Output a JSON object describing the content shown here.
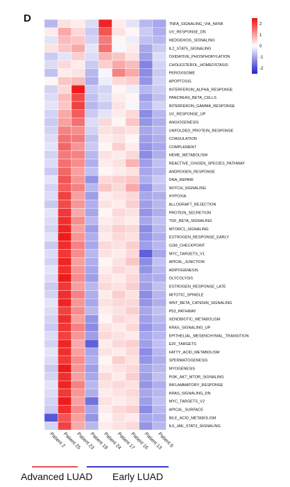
{
  "panel_letter": "D",
  "colors": {
    "low": "#2222cc",
    "mid": "#ffffff",
    "high": "#ee1111",
    "advanced": "#e05050",
    "early": "#3a3ad0"
  },
  "groups": [
    {
      "label": "Advanced LUAD",
      "color": "#e05050"
    },
    {
      "label": "Early LUAD",
      "color": "#3a3ad0"
    }
  ],
  "chart_data": {
    "type": "heatmap",
    "title": "",
    "xlabel": "",
    "ylabel": "",
    "columns": [
      "Patient 2",
      "Patient 25",
      "Patient 23",
      "Patient 19",
      "Patient 24",
      "Patient 17",
      "Patient 16",
      "Patient 13",
      "Patient 6"
    ],
    "rows": [
      "TNFA_SIGNALING_VIA_NFKB",
      "UV_RESPONSE_DN",
      "HEDGEHOG_SIGNALING",
      "IL2_STAT5_SIGNALING",
      "OXIDATIVE_PHOSPHORYLATION",
      "CHOLESTEROL_HOMEOSTASIS",
      "PEROXISOME",
      "APOPTOSIS",
      "INTERFERON_ALPHA_RESPONSE",
      "PANCREAS_BETA_CELLS",
      "INTERFERON_GAMMA_RESPONSE",
      "UV_RESPONSE_UP",
      "ANGIOGENESIS",
      "UNFOLDED_PROTEIN_RESPONSE",
      "COAGULATION",
      "COMPLEMENT",
      "HEME_METABOLISM",
      "REACTIVE_OXIGEN_SPECIES_PATHWAY",
      "ANDROGEN_RESPONSE",
      "DNA_REPAIR",
      "NOTCH_SIGNALING",
      "HYPOXIA",
      "ALLOGRAFT_REJECTION",
      "PROTEIN_SECRETION",
      "TGF_BETA_SIGNALING",
      "MTORC1_SIGNALING",
      "ESTROGEN_RESPONSE_EARLY",
      "G2M_CHECKPOINT",
      "MYC_TARGETS_V1",
      "APICAL_JUNCTION",
      "ADIPOGENESIS",
      "GLYCOLYSIS",
      "ESTROGEN_RESPONSE_LATE",
      "MITOTIC_SPINDLE",
      "WNT_BETA_CATENIN_SIGNALING",
      "P53_PATHWAY",
      "XENOBIOTIC_METABOLISM",
      "KRAS_SIGNALING_UP",
      "EPITHELIAL_MESENCHYMAL_TRANSITION",
      "E2F_TARGETS",
      "FATTY_ACID_METABOLISM",
      "SPERMATOGENESIS",
      "MYOGENESIS",
      "PI3K_AKT_MTOR_SIGNALING",
      "INFLAMMATORY_RESPONSE",
      "KRAS_SIGNALING_DN",
      "MYC_TARGETS_V2",
      "APICAL_SURFACE",
      "BILE_ACID_METABOLISM",
      "IL6_JAK_STAT3_SIGNALING"
    ],
    "values": [
      [
        -0.8,
        0.3,
        0.2,
        -0.4,
        2.3,
        0.2,
        -0.3,
        -0.8,
        -1.0
      ],
      [
        0.2,
        0.9,
        0.4,
        -0.6,
        1.8,
        0.3,
        0.1,
        -0.6,
        -0.9
      ],
      [
        -0.3,
        0.7,
        0.6,
        -0.5,
        1.4,
        0.1,
        -0.2,
        -0.7,
        -0.8
      ],
      [
        0.3,
        0.6,
        0.9,
        -0.3,
        1.5,
        -0.1,
        0.2,
        -1.0,
        -0.6
      ],
      [
        -0.6,
        -0.3,
        0.5,
        -0.4,
        0.8,
        0.6,
        0.3,
        -1.1,
        -0.4
      ],
      [
        -0.4,
        0.4,
        0.2,
        -0.6,
        0.5,
        0.9,
        0.7,
        -1.4,
        -0.5
      ],
      [
        -0.7,
        0.2,
        0.3,
        -0.8,
        -0.1,
        1.3,
        0.9,
        -1.3,
        -0.6
      ],
      [
        0.1,
        0.6,
        0.7,
        -0.9,
        -0.2,
        0.4,
        0.5,
        -1.2,
        -0.5
      ],
      [
        -0.5,
        0.4,
        2.4,
        -0.6,
        -0.5,
        0.1,
        -0.2,
        -0.8,
        -0.6
      ],
      [
        -0.4,
        0.7,
        1.9,
        -0.7,
        -0.4,
        0.2,
        0.1,
        -1.1,
        -0.7
      ],
      [
        -0.3,
        0.6,
        2.0,
        -0.8,
        -0.6,
        0.3,
        -0.1,
        -0.9,
        -0.5
      ],
      [
        -0.5,
        0.9,
        1.7,
        -0.6,
        -0.3,
        0.2,
        0.4,
        -1.3,
        -0.8
      ],
      [
        -0.6,
        1.0,
        1.5,
        -0.4,
        0.4,
        0.1,
        0.6,
        -1.2,
        -0.9
      ],
      [
        -0.5,
        1.3,
        1.2,
        -0.5,
        0.3,
        0.4,
        0.3,
        -1.0,
        -0.8
      ],
      [
        -0.4,
        1.5,
        1.4,
        -0.7,
        0.2,
        0.3,
        0.1,
        -1.1,
        -0.9
      ],
      [
        -0.3,
        1.6,
        1.1,
        -0.6,
        0.1,
        0.5,
        0.2,
        -1.2,
        -1.0
      ],
      [
        -0.5,
        1.4,
        1.3,
        -0.8,
        0.3,
        0.2,
        0.4,
        -1.3,
        -0.9
      ],
      [
        -0.4,
        1.5,
        1.2,
        -0.9,
        0.2,
        0.3,
        0.8,
        -1.1,
        -0.7
      ],
      [
        -0.6,
        1.6,
        1.0,
        -0.7,
        0.1,
        0.2,
        0.3,
        -1.0,
        -0.8
      ],
      [
        -0.3,
        1.8,
        1.1,
        -1.2,
        0.4,
        0.5,
        0.6,
        -0.9,
        -0.6
      ],
      [
        -0.5,
        1.7,
        1.3,
        -0.8,
        0.6,
        0.4,
        0.9,
        -1.2,
        -0.7
      ],
      [
        -0.4,
        2.0,
        1.0,
        -1.1,
        0.2,
        0.3,
        0.4,
        -1.0,
        -0.9
      ],
      [
        -0.6,
        1.9,
        1.1,
        -0.9,
        0.3,
        0.2,
        0.5,
        -1.1,
        -0.8
      ],
      [
        -0.3,
        2.1,
        0.9,
        -1.0,
        0.1,
        0.4,
        0.3,
        -1.2,
        -0.9
      ],
      [
        -0.4,
        2.2,
        1.2,
        -0.8,
        0.2,
        0.3,
        0.2,
        -1.0,
        -0.7
      ],
      [
        -0.5,
        2.3,
        1.0,
        -1.1,
        0.3,
        0.5,
        0.4,
        -1.3,
        -0.8
      ],
      [
        -0.3,
        2.4,
        1.1,
        -0.9,
        0.2,
        0.4,
        0.3,
        -1.2,
        -0.9
      ],
      [
        -0.6,
        2.2,
        1.3,
        -1.0,
        0.4,
        0.3,
        0.5,
        -1.1,
        -0.8
      ],
      [
        -0.4,
        2.1,
        1.2,
        -0.8,
        0.3,
        0.2,
        0.4,
        -1.8,
        -1.0
      ],
      [
        -0.5,
        2.3,
        1.0,
        -0.9,
        0.1,
        0.3,
        0.6,
        -1.3,
        -0.7
      ],
      [
        -0.3,
        2.2,
        1.1,
        -1.0,
        0.2,
        0.4,
        0.3,
        -1.2,
        -0.8
      ],
      [
        -0.4,
        2.4,
        1.2,
        -1.1,
        0.3,
        0.2,
        0.4,
        -1.0,
        -0.9
      ],
      [
        -0.6,
        2.1,
        1.0,
        -0.8,
        0.4,
        0.3,
        0.5,
        -1.1,
        -0.7
      ],
      [
        -0.5,
        2.2,
        1.3,
        -0.9,
        0.2,
        0.5,
        0.3,
        -1.3,
        -0.8
      ],
      [
        -0.3,
        2.3,
        1.1,
        -1.0,
        0.3,
        0.4,
        0.4,
        -1.2,
        -0.9
      ],
      [
        -0.4,
        2.0,
        1.2,
        -0.8,
        0.2,
        0.3,
        0.5,
        -1.0,
        -0.7
      ],
      [
        -0.5,
        2.2,
        1.0,
        -1.2,
        0.1,
        0.4,
        0.3,
        -1.1,
        -0.8
      ],
      [
        -0.6,
        2.1,
        1.3,
        -1.3,
        0.3,
        0.2,
        0.4,
        -1.2,
        -0.9
      ],
      [
        -0.4,
        2.0,
        1.1,
        -1.1,
        0.4,
        0.3,
        0.2,
        -1.0,
        -0.8
      ],
      [
        -0.5,
        2.3,
        0.9,
        -1.8,
        0.2,
        0.4,
        0.5,
        -1.1,
        -0.7
      ],
      [
        -0.3,
        2.2,
        1.0,
        -1.0,
        0.3,
        0.2,
        0.4,
        -1.3,
        -0.8
      ],
      [
        -0.4,
        2.1,
        1.2,
        -0.9,
        0.1,
        0.5,
        0.3,
        -1.2,
        -0.9
      ],
      [
        -0.6,
        2.4,
        1.1,
        -1.1,
        0.2,
        0.3,
        0.4,
        -1.0,
        -0.8
      ],
      [
        -0.5,
        2.2,
        1.0,
        -1.0,
        0.4,
        0.2,
        0.5,
        -1.1,
        -0.7
      ],
      [
        -0.3,
        2.3,
        1.3,
        -0.8,
        0.3,
        0.4,
        0.3,
        -1.2,
        -0.9
      ],
      [
        -0.4,
        2.1,
        1.1,
        -0.9,
        0.2,
        0.3,
        0.4,
        -1.0,
        -0.8
      ],
      [
        -0.5,
        2.4,
        1.0,
        -1.6,
        0.3,
        0.2,
        0.3,
        -1.1,
        -0.7
      ],
      [
        -0.6,
        2.2,
        1.2,
        -1.0,
        0.2,
        0.4,
        0.5,
        -1.3,
        -0.8
      ],
      [
        -1.9,
        1.8,
        1.0,
        -1.2,
        0.1,
        0.3,
        0.2,
        -1.0,
        -0.9
      ],
      [
        -0.5,
        2.0,
        0.9,
        -0.8,
        0.2,
        0.3,
        0.4,
        -1.2,
        -0.8
      ]
    ],
    "scale": {
      "min": -2.5,
      "max": 2.5,
      "ticks": [
        2,
        1,
        0,
        -1,
        -2
      ]
    },
    "legend": "top-right"
  }
}
